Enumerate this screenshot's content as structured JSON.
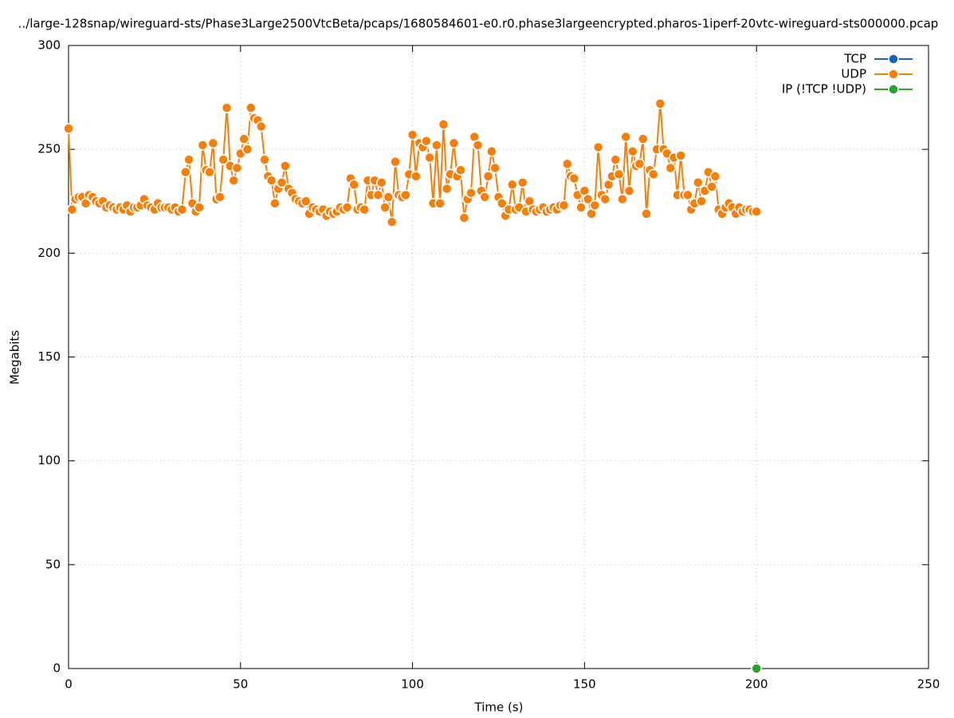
{
  "chart_data": {
    "type": "line",
    "title": "../large-128snap/wireguard-sts/Phase3Large2500VtcBeta/pcaps/1680584601-e0.r0.phase3largeencrypted.pharos-1iperf-20vtc-wireguard-sts000000.pcap",
    "xlabel": "Time (s)",
    "ylabel": "Megabits",
    "xlim": [
      0,
      250
    ],
    "xticks": [
      0,
      50,
      100,
      150,
      200,
      250
    ],
    "ylim": [
      0,
      300
    ],
    "yticks": [
      0,
      50,
      100,
      150,
      200,
      250,
      300
    ],
    "grid": true,
    "legend": "top-right",
    "series": [
      {
        "name": "TCP",
        "color": "#1565b0",
        "x": [],
        "values": []
      },
      {
        "name": "UDP",
        "color": "#f57f0a",
        "x": [
          0,
          1,
          2,
          3,
          4,
          5,
          6,
          7,
          8,
          9,
          10,
          11,
          12,
          13,
          14,
          15,
          16,
          17,
          18,
          19,
          20,
          21,
          22,
          23,
          24,
          25,
          26,
          27,
          28,
          29,
          30,
          31,
          32,
          33,
          34,
          35,
          36,
          37,
          38,
          39,
          40,
          41,
          42,
          43,
          44,
          45,
          46,
          47,
          48,
          49,
          50,
          51,
          52,
          53,
          54,
          55,
          56,
          57,
          58,
          59,
          60,
          61,
          62,
          63,
          64,
          65,
          66,
          67,
          68,
          69,
          70,
          71,
          72,
          73,
          74,
          75,
          76,
          77,
          78,
          79,
          80,
          81,
          82,
          83,
          84,
          85,
          86,
          87,
          88,
          89,
          90,
          91,
          92,
          93,
          94,
          95,
          96,
          97,
          98,
          99,
          100,
          101,
          102,
          103,
          104,
          105,
          106,
          107,
          108,
          109,
          110,
          111,
          112,
          113,
          114,
          115,
          116,
          117,
          118,
          119,
          120,
          121,
          122,
          123,
          124,
          125,
          126,
          127,
          128,
          129,
          130,
          131,
          132,
          133,
          134,
          135,
          136,
          137,
          138,
          139,
          140,
          141,
          142,
          143,
          144,
          145,
          146,
          147,
          148,
          149,
          150,
          151,
          152,
          153,
          154,
          155,
          156,
          157,
          158,
          159,
          160,
          161,
          162,
          163,
          164,
          165,
          166,
          167,
          168,
          169,
          170,
          171,
          172,
          173,
          174,
          175,
          176,
          177,
          178,
          179,
          180,
          181,
          182,
          183,
          184,
          185,
          186,
          187,
          188,
          189,
          190,
          191,
          192,
          193,
          194,
          195,
          196,
          197,
          198,
          199,
          200
        ],
        "values": [
          260,
          221,
          226,
          227,
          227,
          224,
          228,
          227,
          225,
          224,
          225,
          222,
          223,
          222,
          221,
          222,
          221,
          223,
          220,
          222,
          222,
          223,
          226,
          223,
          222,
          221,
          224,
          222,
          222,
          222,
          221,
          222,
          220,
          221,
          239,
          245,
          224,
          220,
          222,
          252,
          240,
          239,
          253,
          226,
          227,
          245,
          270,
          242,
          235,
          241,
          248,
          255,
          250,
          270,
          265,
          264,
          261,
          245,
          237,
          235,
          224,
          231,
          234,
          242,
          231,
          229,
          226,
          225,
          224,
          225,
          219,
          222,
          221,
          220,
          221,
          218,
          220,
          219,
          220,
          222,
          221,
          222,
          236,
          233,
          221,
          222,
          221,
          235,
          228,
          235,
          228,
          234,
          222,
          227,
          215,
          244,
          228,
          227,
          228,
          238,
          257,
          237,
          253,
          251,
          254,
          246,
          224,
          252,
          224,
          262,
          231,
          238,
          253,
          237,
          240,
          217,
          226,
          229,
          256,
          252,
          230,
          227,
          237,
          249,
          241,
          227,
          224,
          218,
          221,
          233,
          221,
          222,
          234,
          220,
          225,
          221,
          220,
          221,
          222,
          220,
          221,
          222,
          221,
          223,
          223,
          243,
          237,
          236,
          228,
          222,
          230,
          226,
          219,
          223,
          251,
          228,
          226,
          233,
          237,
          245,
          238,
          226,
          256,
          230,
          249,
          242,
          243,
          255,
          219,
          240,
          238,
          250,
          272,
          250,
          248,
          241,
          246,
          228,
          247,
          228,
          228,
          221,
          224,
          234,
          225,
          230,
          239,
          232,
          237,
          221,
          219,
          222,
          224,
          222,
          219,
          222,
          220,
          221,
          221,
          220,
          220
        ]
      },
      {
        "name": "IP (!TCP  !UDP)",
        "color": "#2ca02c",
        "x": [
          200
        ],
        "values": [
          0
        ]
      }
    ]
  }
}
